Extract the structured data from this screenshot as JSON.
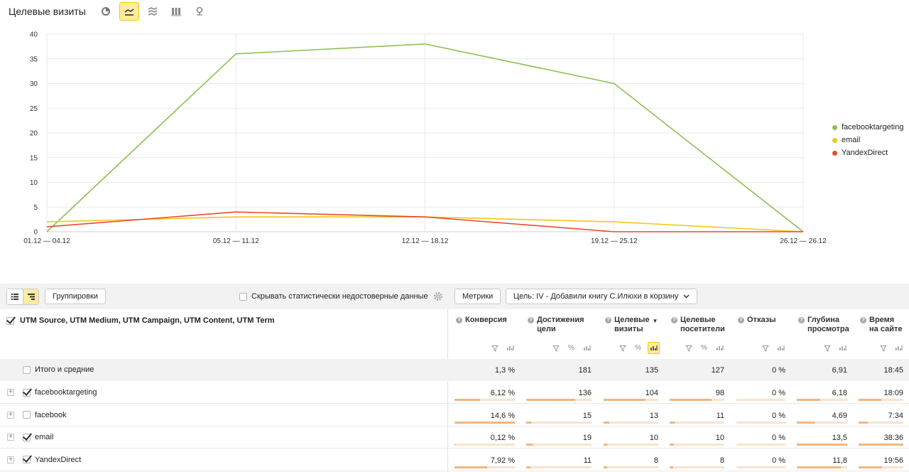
{
  "header": {
    "title": "Целевые визиты",
    "view_buttons": [
      {
        "icon": "pie-chart-icon",
        "active": false
      },
      {
        "icon": "line-chart-icon",
        "active": true
      },
      {
        "icon": "area-chart-icon",
        "active": false
      },
      {
        "icon": "bar-chart-icon",
        "active": false
      },
      {
        "icon": "map-pin-icon",
        "active": false
      }
    ]
  },
  "chart_data": {
    "type": "line",
    "x": [
      "01.12 — 04.12",
      "05.12 — 11.12",
      "12.12 — 18.12",
      "19.12 — 25.12",
      "26.12 — 26.12"
    ],
    "ylim": [
      0,
      40
    ],
    "yticks": [
      0,
      5,
      10,
      15,
      20,
      25,
      30,
      35,
      40
    ],
    "grid": true,
    "legend_position": "right",
    "series": [
      {
        "name": "facebooktargeting",
        "color": "#8cc152",
        "values": [
          0,
          36,
          38,
          30,
          0
        ]
      },
      {
        "name": "email",
        "color": "#f5c518",
        "values": [
          2,
          3,
          3,
          2,
          0
        ]
      },
      {
        "name": "YandexDirect",
        "color": "#e74c2b",
        "values": [
          1,
          4,
          3,
          0,
          0
        ]
      }
    ]
  },
  "toolbar": {
    "groupings_label": "Группировки",
    "hide_unreliable_label": "Скрывать статистически недостоверные данные",
    "metrics_label": "Метрики",
    "goal_label": "Цель: IV - Добавили книгу С.Илюхи в корзину"
  },
  "table": {
    "dimension_header": "UTM Source, UTM Medium, UTM Campaign, UTM Content, UTM Term",
    "columns": [
      {
        "line1": "Конверсия",
        "line2": "",
        "icons": [
          "filter",
          "chart"
        ],
        "sorted": false
      },
      {
        "line1": "Достижения",
        "line2": "цели",
        "icons": [
          "filter",
          "percent",
          "chart"
        ],
        "sorted": false
      },
      {
        "line1": "Целевые",
        "line2": "визиты",
        "icons": [
          "filter",
          "percent",
          "chart-active"
        ],
        "sorted": true
      },
      {
        "line1": "Целевые",
        "line2": "посетители",
        "icons": [
          "filter",
          "percent",
          "chart"
        ],
        "sorted": false
      },
      {
        "line1": "Отказы",
        "line2": "",
        "icons": [
          "filter",
          "chart"
        ],
        "sorted": false
      },
      {
        "line1": "Глубина",
        "line2": "просмотра",
        "icons": [
          "filter",
          "chart"
        ],
        "sorted": false
      },
      {
        "line1": "Время",
        "line2": "на сайте",
        "icons": [
          "filter",
          "chart"
        ],
        "sorted": false
      }
    ],
    "total": {
      "label": "Итого и средние",
      "values": [
        "1,3 %",
        "181",
        "135",
        "127",
        "0 %",
        "6,91",
        "18:45"
      ]
    },
    "rows": [
      {
        "label": "facebooktargeting",
        "checked": true,
        "values": [
          "6,12 %",
          "136",
          "104",
          "98",
          "0 %",
          "6,18",
          "18:09"
        ],
        "shares": [
          0.42,
          0.75,
          0.77,
          0.77,
          0,
          0.46,
          0.51
        ]
      },
      {
        "label": "facebook",
        "checked": false,
        "values": [
          "14,6 %",
          "15",
          "13",
          "11",
          "0 %",
          "4,69",
          "7:34"
        ],
        "shares": [
          1.0,
          0.08,
          0.1,
          0.09,
          0,
          0.35,
          0.21
        ]
      },
      {
        "label": "email",
        "checked": true,
        "values": [
          "0,12 %",
          "19",
          "10",
          "10",
          "0 %",
          "13,5",
          "38:36"
        ],
        "shares": [
          0.01,
          0.1,
          0.07,
          0.08,
          0,
          1.0,
          1.0
        ]
      },
      {
        "label": "YandexDirect",
        "checked": true,
        "values": [
          "7,92 %",
          "11",
          "8",
          "8",
          "0 %",
          "11,8",
          "19:56"
        ],
        "shares": [
          0.54,
          0.06,
          0.06,
          0.06,
          0,
          0.87,
          0.52
        ]
      }
    ]
  }
}
